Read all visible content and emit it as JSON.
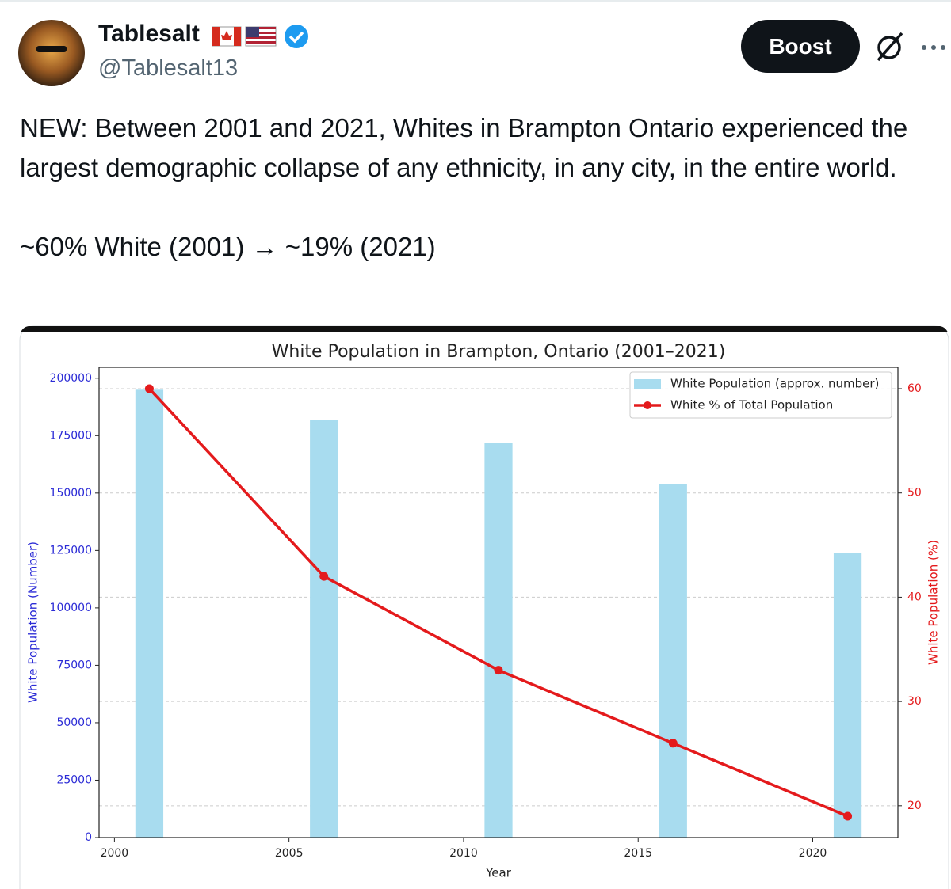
{
  "tweet": {
    "author": {
      "name": "Tablesalt",
      "handle": "@Tablesalt13"
    },
    "button": "Boost",
    "paragraphs": [
      "NEW: Between 2001 and 2021, Whites in Brampton Ontario experienced the largest demographic collapse of any ethnicity, in any city, in the entire world.",
      "~60% White (2001) → ~19% (2021)"
    ]
  },
  "chart_data": {
    "type": "bar",
    "title": "White Population in Brampton, Ontario (2001–2021)",
    "xlabel": "Year",
    "ylabel": "White Population (Number)",
    "y2label": "White Population (%)",
    "x": [
      2001,
      2006,
      2011,
      2016,
      2021
    ],
    "series": [
      {
        "name": "White Population (approx. number)",
        "type": "bar",
        "color": "#a8dcef",
        "values": [
          195000,
          182000,
          172000,
          154000,
          124000
        ]
      },
      {
        "name": "White % of Total Population",
        "type": "line",
        "axis": "y2",
        "color": "#e41a1c",
        "values": [
          60,
          42,
          33,
          26,
          19
        ]
      }
    ],
    "xlim": [
      1999.56,
      2022.44
    ],
    "xticks": [
      2000,
      2005,
      2010,
      2015,
      2020
    ],
    "ylim": [
      0,
      204750
    ],
    "yticks": [
      0,
      25000,
      50000,
      75000,
      100000,
      125000,
      150000,
      175000,
      200000
    ],
    "y2lim": [
      16.95,
      62.05
    ],
    "y2ticks": [
      20,
      30,
      40,
      50,
      60
    ],
    "ycolor": "#2b2bd6",
    "y2color": "#e41a1c",
    "grid": "y2",
    "legend": "upper right"
  }
}
